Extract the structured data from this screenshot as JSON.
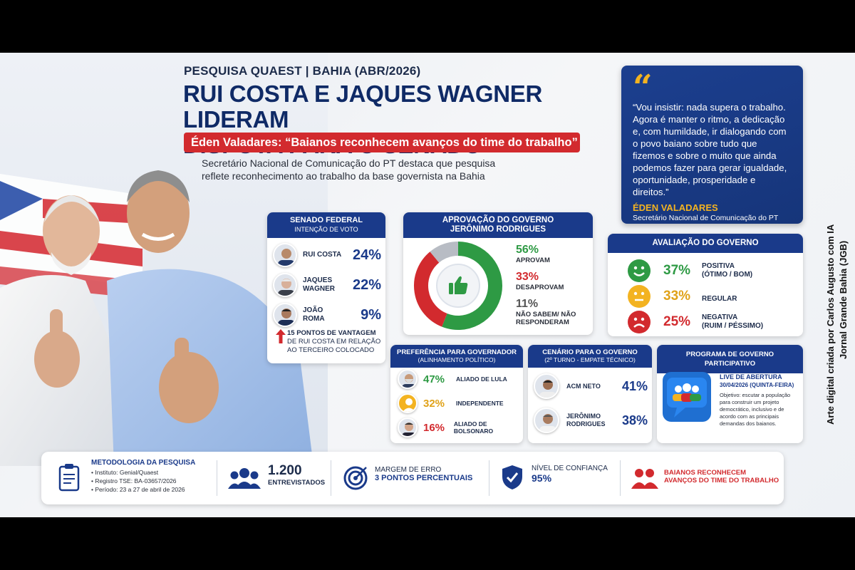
{
  "kicker": "PESQUISA QUAEST | BAHIA (ABR/2026)",
  "headline_line1": "RUI COSTA E JAQUES WAGNER LIDERAM",
  "headline_line2": "DISPUTA PARA O SENADO",
  "banner": "Éden Valadares: “Baianos reconhecem avanços do time do trabalho”",
  "subtext_line1": "Secretário Nacional de Comunicação do PT destaca que pesquisa",
  "subtext_line2": "reflete reconhecimento ao trabalho da base governista na Bahia",
  "quote": {
    "mark": "“",
    "text": "“Vou insistir: nada supera o trabalho. Agora é manter o ritmo, a dedicação e, com humildade, ir dialogando com o povo baiano sobre tudo que fizemos e sobre o muito que ainda podemos fazer para gerar igualdade, oportunidade, prosperidade e direitos.”",
    "author": "ÉDEN VALADARES",
    "role": "Secretário Nacional de Comunicação do PT"
  },
  "side_credit_line1": "Arte digital criada por Carlos Augusto com IA",
  "side_credit_line2": "Jornal Grande Bahia (JGB)",
  "senate": {
    "title": "SENADO FEDERAL",
    "subtitle": "INTENÇÃO DE VOTO",
    "lead_line1": "15 PONTOS DE VANTAGEM",
    "lead_line2": "DE RUI COSTA EM RELAÇÃO",
    "lead_line3": "AO TERCEIRO COLOCADO",
    "lead_icon": "arrow-up-icon"
  },
  "approval": {
    "title_line1": "APROVAÇÃO DO GOVERNO",
    "title_line2": "JERÔNIMO RODRIGUES",
    "center_icon": "thumbs-up-icon"
  },
  "evaluation": {
    "title": "AVALIAÇÃO DO GOVERNO"
  },
  "preference": {
    "title": "PREFERÊNCIA PARA GOVERNADOR",
    "subtitle": "(ALINHAMENTO POLÍTICO)"
  },
  "scenario": {
    "title": "CENÁRIO PARA O GOVERNO",
    "subtitle": "(2º TURNO - EMPATE TÉCNICO)"
  },
  "program": {
    "title": "PROGRAMA DE GOVERNO PARTICIPATIVO",
    "live_line1": "LIVE DE ABERTURA",
    "live_line2": "30/04/2026 (QUINTA-FEIRA)",
    "desc": "Objetivo: escutar a população para construir um projeto democrático, inclusivo e de acordo com as principais demandas dos baianos.",
    "icon": "people-chat-icon"
  },
  "methodology": {
    "title": "METODOLOGIA DA PESQUISA",
    "items": [
      "• Instituto: Genial/Quaest",
      "• Registro TSE: BA-03657/2026",
      "• Período: 23 a 27 de abril de 2026"
    ],
    "icon": "clipboard-icon"
  },
  "interviewed": {
    "value": "1.200",
    "label": "ENTREVISTADOS",
    "icon": "group-icon"
  },
  "margin": {
    "line1": "MARGEM DE ERRO",
    "line2": "3 PONTOS PERCENTUAIS",
    "icon": "target-icon"
  },
  "confidence": {
    "line1": "NÍVEL DE CONFIANÇA",
    "value": "95%",
    "icon": "shield-check-icon"
  },
  "closing": {
    "line1": "BAIANOS RECONHECEM",
    "line2": "AVANÇOS DO TIME DO TRABALHO",
    "icon": "people-icon"
  },
  "colors": {
    "navy": "#1a3a8a",
    "red": "#d22a2e",
    "green": "#2e9a44",
    "yellow": "#f3b321",
    "gray": "#b8bcc4"
  },
  "chart_data": [
    {
      "type": "bar",
      "title": "SENADO FEDERAL",
      "subtitle": "INTENÇÃO DE VOTO",
      "categories": [
        "RUI COSTA",
        "JAQUES WAGNER",
        "JOÃO ROMA"
      ],
      "values": [
        24,
        22,
        9
      ],
      "labels": [
        "24%",
        "22%",
        "9%"
      ]
    },
    {
      "type": "pie",
      "title": "APROVAÇÃO DO GOVERNO JERÔNIMO RODRIGUES",
      "categories": [
        "APROVAM",
        "DESAPROVAM",
        "NÃO SABEM/ NÃO RESPONDERAM"
      ],
      "values": [
        56,
        33,
        11
      ],
      "labels": [
        "56%",
        "33%",
        "11%"
      ],
      "colors": [
        "#2e9a44",
        "#d22a2e",
        "#b8bcc4"
      ]
    },
    {
      "type": "bar",
      "title": "AVALIAÇÃO DO GOVERNO",
      "categories": [
        "POSITIVA (ÓTIMO / BOM)",
        "REGULAR",
        "NEGATIVA (RUIM / PÉSSIMO)"
      ],
      "category_line1": [
        "POSITIVA",
        "REGULAR",
        "NEGATIVA"
      ],
      "category_line2": [
        "(ÓTIMO / BOM)",
        "",
        "(RUIM / PÉSSIMO)"
      ],
      "values": [
        37,
        33,
        25
      ],
      "labels": [
        "37%",
        "33%",
        "25%"
      ],
      "colors": [
        "#2e9a44",
        "#f3b321",
        "#d22a2e"
      ]
    },
    {
      "type": "bar",
      "title": "PREFERÊNCIA PARA GOVERNADOR",
      "subtitle": "(ALINHAMENTO POLÍTICO)",
      "categories": [
        "ALIADO DE LULA",
        "INDEPENDENTE",
        "ALIADO DE BOLSONARO"
      ],
      "values": [
        47,
        32,
        16
      ],
      "labels": [
        "47%",
        "32%",
        "16%"
      ],
      "colors": [
        "#2e9a44",
        "#f3b321",
        "#d22a2e"
      ]
    },
    {
      "type": "bar",
      "title": "CENÁRIO PARA O GOVERNO",
      "subtitle": "(2º TURNO - EMPATE TÉCNICO)",
      "categories": [
        "ACM NETO",
        "JERÔNIMO RODRIGUES"
      ],
      "category_line1": [
        "ACM NETO",
        "JERÔNIMO"
      ],
      "category_line2": [
        "",
        "RODRIGUES"
      ],
      "values": [
        41,
        38
      ],
      "labels": [
        "41%",
        "38%"
      ]
    }
  ]
}
